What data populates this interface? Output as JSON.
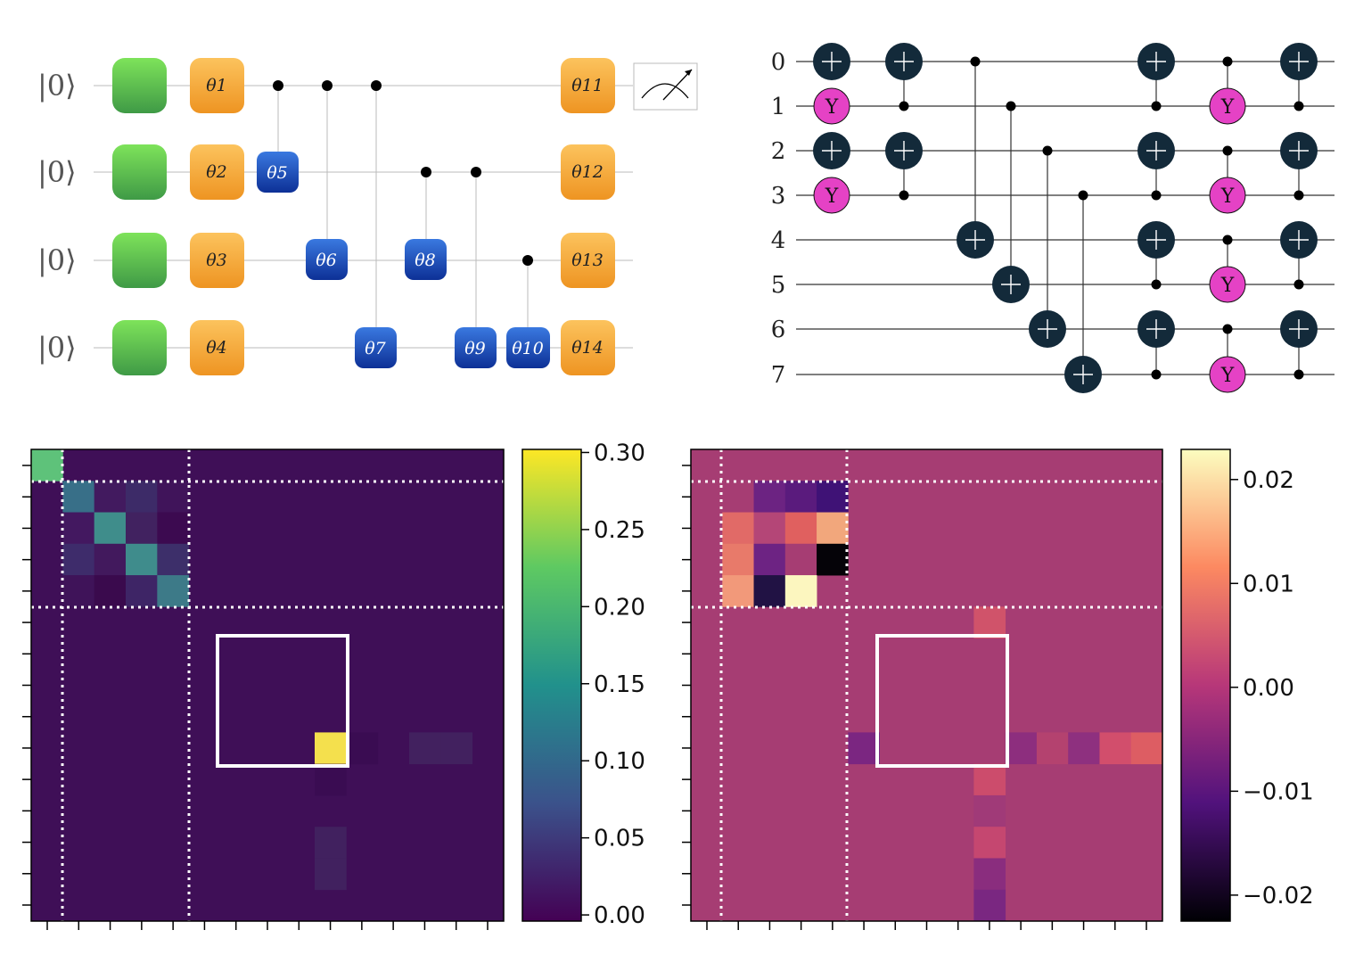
{
  "circuit_a": {
    "ket_label": "|0⟩",
    "gate_labels": [
      "θ1",
      "θ2",
      "θ3",
      "θ4",
      "θ5",
      "θ6",
      "θ7",
      "θ8",
      "θ9",
      "θ10",
      "θ11",
      "θ12",
      "θ13",
      "θ14"
    ],
    "colors": {
      "hadamard_top": "#7ee35a",
      "hadamard_bottom": "#3f9a46",
      "rot_top": "#fcc35d",
      "rot_bottom": "#ee9422",
      "ctrl_top": "#3a79e0",
      "ctrl_bottom": "#0d3096"
    }
  },
  "circuit_b": {
    "qubit_labels": [
      "0",
      "1",
      "2",
      "3",
      "4",
      "5",
      "6",
      "7"
    ],
    "y_label": "Y",
    "colors": {
      "cnot": "#132a3a",
      "y_gate": "#e542c5"
    }
  },
  "heatmap_left": {
    "colormap": "viridis",
    "colorbar_ticks": [
      "0.30",
      "0.25",
      "0.20",
      "0.15",
      "0.10",
      "0.05",
      "0.00"
    ],
    "vmin": 0.0,
    "vmax": 0.3
  },
  "heatmap_right": {
    "colormap": "magma",
    "colorbar_ticks": [
      "0.02",
      "0.01",
      "0.00",
      "−0.01",
      "−0.02"
    ],
    "vmin": -0.022,
    "vmax": 0.022
  }
}
